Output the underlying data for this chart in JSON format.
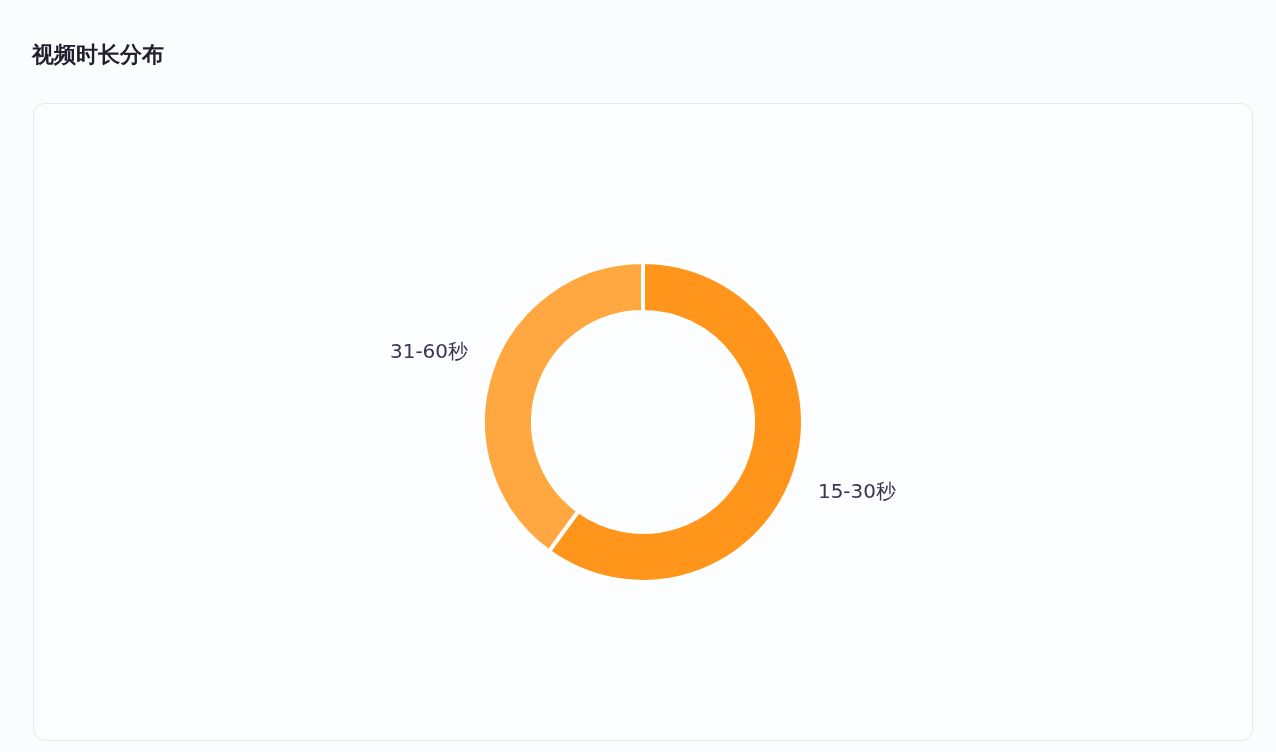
{
  "chart_data": {
    "type": "donut",
    "title": "视频时长分布",
    "categories": [
      "15-30秒",
      "31-60秒"
    ],
    "values": [
      60,
      40
    ],
    "colors": [
      "#ff951a",
      "#ffa842"
    ]
  }
}
